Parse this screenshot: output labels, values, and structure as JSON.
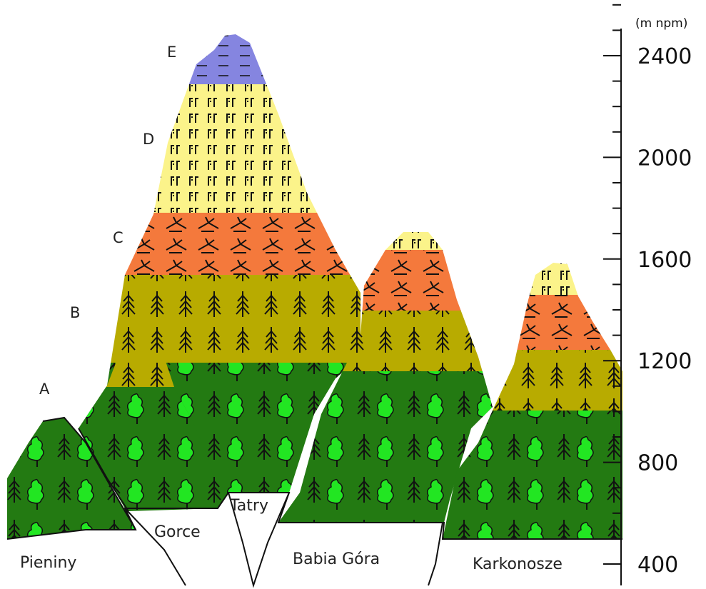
{
  "zones": [
    "A",
    "B",
    "C",
    "D",
    "E"
  ],
  "mountains": [
    "Pieniny",
    "Gorce",
    "Tatry",
    "Babia Góra",
    "Karkonosze"
  ],
  "scale": {
    "unit": "(m npm)",
    "ticks": [
      400,
      800,
      1200,
      1600,
      2000,
      2400
    ]
  }
}
